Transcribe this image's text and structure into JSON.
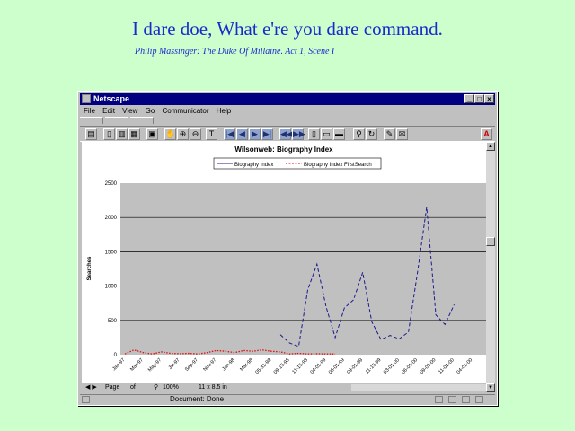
{
  "slide": {
    "title": "I dare doe, What e're you dare command.",
    "subtitle": "Philip Massinger: The Duke Of Millaine. Act 1, Scene I"
  },
  "window": {
    "title": "Netscape",
    "menu": [
      "File",
      "Edit",
      "View",
      "Go",
      "Communicator",
      "Help"
    ],
    "status_text": "Document: Done",
    "plugin_bar": {
      "page_label": "Page",
      "page_of": "of",
      "zoom": "100%",
      "page_size": "11 x 8.5 in"
    }
  },
  "colors": {
    "series1": "#1a1a8c",
    "series2": "#e01010",
    "plot_bg": "#c0c0c0"
  },
  "chart_data": {
    "type": "line",
    "title": "Wilsonweb: Biography Index",
    "xlabel": "",
    "ylabel": "Searches",
    "ylim": [
      0,
      2500
    ],
    "yticks": [
      0,
      500,
      1000,
      1500,
      2000,
      2500
    ],
    "grid": true,
    "legend": "top",
    "tick_labels": [
      "Jan-97",
      "Mar-97",
      "May-97",
      "Jul-97",
      "Sep-97",
      "Nov-97",
      "Jan-98",
      "Mar-98",
      "05-31-98",
      "09-15-98",
      "11-15-98",
      "04-01-99",
      "06-01-99",
      "09-01-99",
      "11-15-99",
      "03-01-00",
      "06-01-00",
      "09-01-00",
      "11-01-00",
      "04-01-00"
    ],
    "series": [
      {
        "name": "Biography Index",
        "style": "dashed",
        "x": [
          17,
          18,
          19,
          20,
          21,
          22,
          23,
          24,
          25,
          26,
          27,
          28,
          29,
          30,
          31,
          32,
          33,
          34,
          35,
          36,
          37,
          38,
          39
        ],
        "values": [
          290,
          170,
          120,
          950,
          1320,
          700,
          250,
          680,
          800,
          1200,
          480,
          220,
          280,
          230,
          330,
          1200,
          2150,
          580,
          440,
          730,
          null,
          null,
          null
        ]
      },
      {
        "name": "Biography Index FirstSearch",
        "style": "dotted",
        "x": [
          0,
          1,
          2,
          3,
          4,
          5,
          6,
          7,
          8,
          9,
          10,
          11,
          12,
          13,
          14,
          15,
          16,
          17,
          18,
          19,
          20,
          21,
          22,
          23
        ],
        "values": [
          10,
          70,
          30,
          10,
          40,
          20,
          15,
          20,
          10,
          30,
          60,
          50,
          30,
          60,
          50,
          70,
          50,
          40,
          10,
          20,
          10,
          15,
          10,
          10
        ]
      }
    ]
  }
}
